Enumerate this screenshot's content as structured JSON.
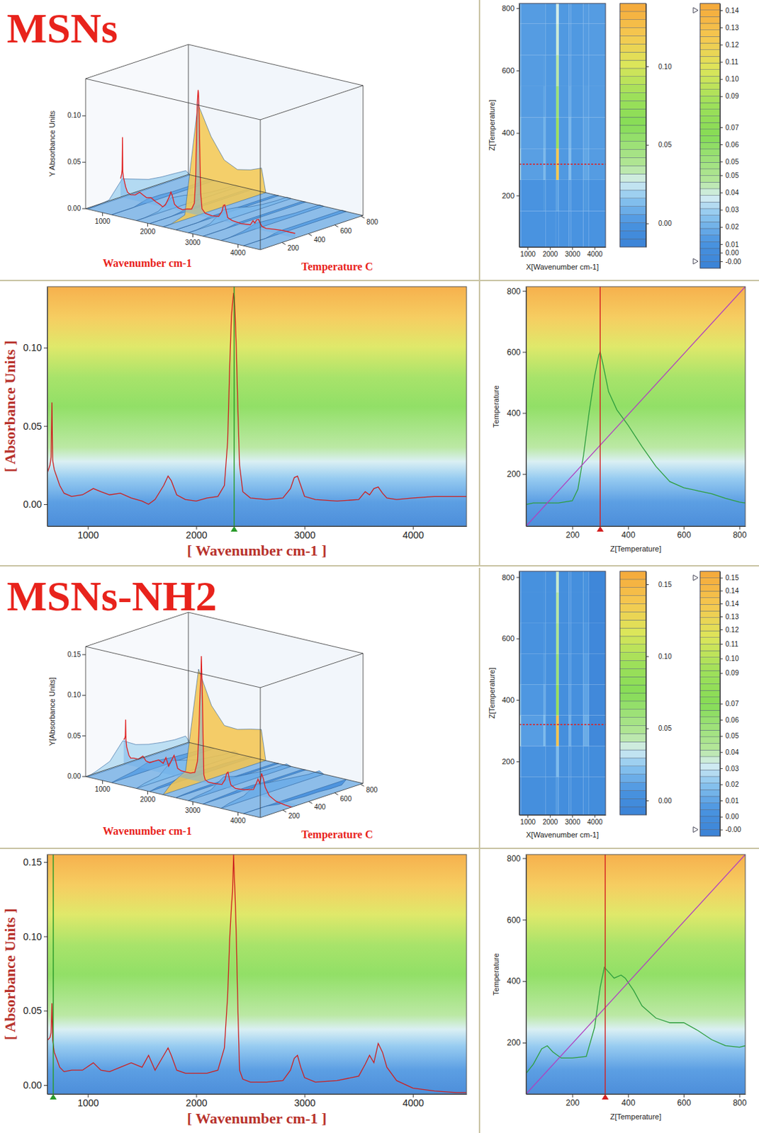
{
  "chart_data": [
    {
      "type": "surface3d",
      "title": "MSNs",
      "x_label": "Wavenumber cm-1",
      "y_label": "Temperature C",
      "z_label": "Y Absorbance Units",
      "xlim": [
        625,
        4495
      ],
      "xticks": [
        1000,
        2000,
        3000,
        4000
      ],
      "ylim": [
        35,
        815
      ],
      "yticks": [
        200,
        400,
        600,
        800
      ],
      "zlim": [
        0,
        0.14
      ],
      "zticks": [
        {
          "value": 0,
          "label": "0.00"
        },
        {
          "value": 0.05,
          "label": "0.05"
        },
        {
          "value": 0.1,
          "label": "0.10"
        }
      ]
    },
    {
      "type": "heatmap",
      "x_label": "X[Wavenumber cm-1]",
      "y_label": "Z[Temperature]",
      "xlim": [
        625,
        4495
      ],
      "xticks": [
        1000,
        2000,
        3000,
        4000
      ],
      "ylim": [
        35,
        815
      ],
      "yticks": [
        200,
        400,
        600,
        800
      ],
      "x_bins": [
        625,
        700,
        1700,
        1800,
        2280,
        2400,
        2850,
        2950,
        3500,
        3750,
        4495
      ],
      "y_bins": [
        35,
        150,
        250,
        350,
        450,
        550,
        650,
        750,
        815
      ],
      "cells": [
        [
          0,
          0,
          0,
          0,
          0,
          0,
          0,
          0,
          0,
          0
        ],
        [
          0.002,
          0,
          0.002,
          0,
          0.005,
          0,
          0.002,
          0,
          0.002,
          0
        ],
        [
          0.02,
          0.004,
          0.012,
          0.002,
          0.12,
          0.002,
          0.012,
          0.002,
          0.006,
          0.003
        ],
        [
          0.015,
          0.004,
          0.01,
          0.002,
          0.08,
          0.002,
          0.01,
          0.002,
          0.005,
          0.003
        ],
        [
          0.01,
          0.003,
          0.006,
          0.002,
          0.05,
          0.002,
          0.006,
          0.002,
          0.004,
          0.003
        ],
        [
          0.008,
          0.003,
          0.004,
          0.002,
          0.035,
          0.002,
          0.004,
          0.002,
          0.003,
          0.003
        ],
        [
          0.007,
          0.003,
          0.003,
          0.002,
          0.03,
          0.002,
          0.003,
          0.002,
          0.003,
          0.003
        ],
        [
          0.006,
          0.003,
          0.003,
          0.002,
          0.028,
          0.002,
          0.003,
          0.002,
          0.003,
          0.003
        ]
      ],
      "cursor_y": 300,
      "colorbar": {
        "range": [
          -0.015,
          0.14
        ],
        "ticks": [
          {
            "value": 0,
            "label": "0.00"
          },
          {
            "value": 0.05,
            "label": "0.05"
          },
          {
            "value": 0.1,
            "label": "0.10"
          }
        ]
      },
      "colorbar2": {
        "range": [
          -0.008,
          0.146
        ],
        "ticks": [
          {
            "value": 0.142,
            "label": "0.14"
          },
          {
            "value": 0.132,
            "label": "0.13"
          },
          {
            "value": 0.122,
            "label": "0.12"
          },
          {
            "value": 0.112,
            "label": "0.11"
          },
          {
            "value": 0.102,
            "label": "0.10"
          },
          {
            "value": 0.092,
            "label": "0.09"
          },
          {
            "value": 0.074,
            "label": "0.07"
          },
          {
            "value": 0.064,
            "label": "0.06"
          },
          {
            "value": 0.054,
            "label": "0.05"
          },
          {
            "value": 0.046,
            "label": "0.05"
          },
          {
            "value": 0.036,
            "label": "0.04"
          },
          {
            "value": 0.026,
            "label": "0.03"
          },
          {
            "value": 0.016,
            "label": "0.02"
          },
          {
            "value": 0.006,
            "label": "0.01"
          },
          {
            "value": 0.001,
            "label": "0.00"
          },
          {
            "value": -0.004,
            "label": "-0.00"
          }
        ]
      }
    },
    {
      "type": "line",
      "x_label": "[ Wavenumber cm-1 ]",
      "y_label": "[ Absorbance Units ]",
      "xlim": [
        625,
        4495
      ],
      "xticks": [
        1000,
        2000,
        3000,
        4000
      ],
      "ylim": [
        -0.014,
        0.139
      ],
      "yticks": [
        {
          "value": 0,
          "label": "0.00"
        },
        {
          "value": 0.05,
          "label": "0.05"
        },
        {
          "value": 0.1,
          "label": "0.10"
        }
      ],
      "x": [
        625,
        650,
        660,
        668,
        675,
        690,
        710,
        740,
        780,
        850,
        950,
        1050,
        1120,
        1200,
        1300,
        1400,
        1500,
        1560,
        1620,
        1700,
        1740,
        1770,
        1820,
        1900,
        2000,
        2100,
        2200,
        2260,
        2290,
        2310,
        2325,
        2335,
        2345,
        2352,
        2360,
        2370,
        2385,
        2400,
        2430,
        2500,
        2650,
        2800,
        2870,
        2905,
        2935,
        2965,
        3000,
        3100,
        3300,
        3500,
        3560,
        3600,
        3640,
        3680,
        3720,
        3760,
        3850,
        4000,
        4200,
        4400,
        4495
      ],
      "series": [
        {
          "color": "#cc2020",
          "values": [
            0.02,
            0.025,
            0.03,
            0.065,
            0.028,
            0.022,
            0.018,
            0.012,
            0.007,
            0.005,
            0.006,
            0.01,
            0.008,
            0.006,
            0.007,
            0.004,
            0.002,
            0.0,
            0.003,
            0.012,
            0.018,
            0.015,
            0.006,
            0.003,
            0.002,
            0.004,
            0.005,
            0.012,
            0.04,
            0.09,
            0.12,
            0.128,
            0.135,
            0.132,
            0.12,
            0.1,
            0.06,
            0.025,
            0.008,
            0.004,
            0.003,
            0.004,
            0.01,
            0.017,
            0.018,
            0.012,
            0.005,
            0.003,
            0.002,
            0.003,
            0.008,
            0.006,
            0.01,
            0.011,
            0.007,
            0.004,
            0.003,
            0.004,
            0.005,
            0.005,
            0.005
          ]
        }
      ],
      "cursor_x": 2350
    },
    {
      "type": "line",
      "x_label": "Z[Temperature]",
      "y_label": "Temperature",
      "xlim": [
        34,
        821
      ],
      "xticks": [
        200,
        400,
        600,
        800
      ],
      "ylim": [
        29,
        814
      ],
      "yticks": [
        200,
        400,
        600,
        800
      ],
      "series": [
        {
          "color": "#2e9e3e",
          "x": [
            34,
            60,
            100,
            150,
            200,
            220,
            240,
            260,
            280,
            295,
            300,
            310,
            330,
            360,
            400,
            450,
            500,
            550,
            600,
            650,
            700,
            750,
            800,
            821
          ],
          "values": [
            100,
            105,
            105,
            105,
            112,
            150,
            260,
            400,
            520,
            590,
            600,
            560,
            470,
            410,
            360,
            290,
            225,
            175,
            155,
            145,
            135,
            120,
            108,
            105
          ]
        },
        {
          "color": "#b040c0",
          "x": [
            34,
            821
          ],
          "values": [
            29,
            814
          ]
        }
      ],
      "cursor_x": 300
    },
    {
      "type": "surface3d",
      "title": "MSNs-NH2",
      "x_label": "Wavenumber cm-1",
      "y_label": "Temperature C",
      "z_label": "Y[Absorbance Units]",
      "xlim": [
        625,
        4495
      ],
      "xticks": [
        1000,
        2000,
        3000,
        4000
      ],
      "ylim": [
        26,
        819
      ],
      "yticks": [
        200,
        400,
        600,
        800
      ],
      "zlim": [
        0,
        0.16
      ],
      "zticks": [
        {
          "value": 0,
          "label": "0.00"
        },
        {
          "value": 0.05,
          "label": "0.05"
        },
        {
          "value": 0.1,
          "label": "0.10"
        },
        {
          "value": 0.15,
          "label": "0.15"
        }
      ]
    },
    {
      "type": "heatmap",
      "x_label": "X[Wavenumber cm-1]",
      "y_label": "Z[Temperature]",
      "xlim": [
        625,
        4495
      ],
      "xticks": [
        1000,
        2000,
        3000,
        4000
      ],
      "ylim": [
        26,
        819
      ],
      "yticks": [
        200,
        400,
        600,
        800
      ],
      "x_bins": [
        625,
        700,
        1700,
        1800,
        2280,
        2400,
        2850,
        2950,
        3500,
        3750,
        4495
      ],
      "y_bins": [
        26,
        150,
        250,
        350,
        450,
        550,
        650,
        750,
        819
      ],
      "cells": [
        [
          0.003,
          0.002,
          0.003,
          0.002,
          0.01,
          0.001,
          0.002,
          0.001,
          0.003,
          0.0
        ],
        [
          0.01,
          0.005,
          0.006,
          0.003,
          0.02,
          0.002,
          0.004,
          0.002,
          0.006,
          0.0
        ],
        [
          0.03,
          0.01,
          0.02,
          0.006,
          0.14,
          0.002,
          0.015,
          0.003,
          0.015,
          -0.003
        ],
        [
          0.02,
          0.008,
          0.015,
          0.005,
          0.09,
          0.002,
          0.01,
          0.003,
          0.012,
          -0.003
        ],
        [
          0.015,
          0.006,
          0.01,
          0.004,
          0.06,
          0.002,
          0.008,
          0.002,
          0.01,
          -0.004
        ],
        [
          0.012,
          0.005,
          0.008,
          0.004,
          0.05,
          0.002,
          0.006,
          0.002,
          0.008,
          -0.004
        ],
        [
          0.01,
          0.004,
          0.006,
          0.003,
          0.045,
          0.002,
          0.005,
          0.002,
          0.006,
          -0.005
        ],
        [
          0.01,
          0.004,
          0.006,
          0.003,
          0.04,
          0.002,
          0.005,
          0.002,
          0.006,
          -0.005
        ]
      ],
      "cursor_y": 320,
      "colorbar": {
        "range": [
          -0.01,
          0.159
        ],
        "ticks": [
          {
            "value": 0,
            "label": "0.00"
          },
          {
            "value": 0.05,
            "label": "0.05"
          },
          {
            "value": 0.1,
            "label": "0.10"
          },
          {
            "value": 0.15,
            "label": "0.15"
          }
        ]
      },
      "colorbar2": {
        "range": [
          -0.008,
          0.156
        ],
        "ticks": [
          {
            "value": 0.152,
            "label": "0.15"
          },
          {
            "value": 0.144,
            "label": "0.14"
          },
          {
            "value": 0.136,
            "label": "0.14"
          },
          {
            "value": 0.128,
            "label": "0.13"
          },
          {
            "value": 0.12,
            "label": "0.12"
          },
          {
            "value": 0.111,
            "label": "0.11"
          },
          {
            "value": 0.102,
            "label": "0.10"
          },
          {
            "value": 0.093,
            "label": "0.09"
          },
          {
            "value": 0.074,
            "label": "0.07"
          },
          {
            "value": 0.064,
            "label": "0.06"
          },
          {
            "value": 0.054,
            "label": "0.05"
          },
          {
            "value": 0.044,
            "label": "0.04"
          },
          {
            "value": 0.034,
            "label": "0.03"
          },
          {
            "value": 0.024,
            "label": "0.02"
          },
          {
            "value": 0.014,
            "label": "0.01"
          },
          {
            "value": 0.004,
            "label": "0.00"
          },
          {
            "value": -0.004,
            "label": "-0.00"
          }
        ]
      }
    },
    {
      "type": "line",
      "x_label": "[ Wavenumber cm-1 ]",
      "y_label": "[ Absorbance Units ]",
      "xlim": [
        625,
        4495
      ],
      "xticks": [
        1000,
        2000,
        3000,
        4000
      ],
      "ylim": [
        -0.006,
        0.155
      ],
      "yticks": [
        {
          "value": 0,
          "label": "0.00"
        },
        {
          "value": 0.05,
          "label": "0.05"
        },
        {
          "value": 0.1,
          "label": "0.10"
        },
        {
          "value": 0.15,
          "label": "0.15"
        }
      ],
      "x": [
        625,
        650,
        660,
        668,
        675,
        690,
        710,
        740,
        780,
        850,
        950,
        1050,
        1120,
        1200,
        1300,
        1400,
        1500,
        1560,
        1620,
        1700,
        1740,
        1770,
        1820,
        1900,
        2000,
        2100,
        2200,
        2260,
        2290,
        2310,
        2325,
        2335,
        2345,
        2352,
        2360,
        2370,
        2385,
        2400,
        2430,
        2500,
        2650,
        2800,
        2870,
        2905,
        2935,
        2965,
        3000,
        3100,
        3300,
        3500,
        3560,
        3600,
        3640,
        3680,
        3720,
        3760,
        3850,
        4000,
        4200,
        4400,
        4495
      ],
      "series": [
        {
          "color": "#cc2020",
          "values": [
            0.03,
            0.032,
            0.035,
            0.055,
            0.03,
            0.022,
            0.018,
            0.012,
            0.009,
            0.01,
            0.01,
            0.015,
            0.01,
            0.009,
            0.012,
            0.015,
            0.012,
            0.02,
            0.01,
            0.02,
            0.025,
            0.02,
            0.01,
            0.008,
            0.008,
            0.008,
            0.01,
            0.025,
            0.06,
            0.1,
            0.12,
            0.13,
            0.155,
            0.14,
            0.125,
            0.1,
            0.05,
            0.01,
            0.004,
            0.002,
            0.002,
            0.003,
            0.01,
            0.018,
            0.02,
            0.012,
            0.005,
            0.002,
            0.003,
            0.006,
            0.014,
            0.02,
            0.015,
            0.028,
            0.022,
            0.012,
            0.003,
            -0.002,
            -0.004,
            -0.005,
            -0.005
          ]
        }
      ],
      "cursor_x": 680
    },
    {
      "type": "line",
      "x_label": "Z[Temperature]",
      "y_label": "Temperature",
      "xlim": [
        34,
        821
      ],
      "xticks": [
        200,
        400,
        600,
        800
      ],
      "ylim": [
        33,
        812
      ],
      "yticks": [
        200,
        400,
        600,
        800
      ],
      "series": [
        {
          "color": "#2e9e3e",
          "x": [
            34,
            60,
            90,
            110,
            130,
            160,
            200,
            250,
            280,
            300,
            315,
            330,
            350,
            375,
            390,
            420,
            450,
            500,
            550,
            600,
            650,
            700,
            750,
            800,
            821
          ],
          "values": [
            100,
            130,
            180,
            190,
            170,
            150,
            150,
            155,
            250,
            380,
            445,
            430,
            410,
            420,
            410,
            370,
            320,
            280,
            265,
            265,
            240,
            210,
            190,
            185,
            190
          ]
        },
        {
          "color": "#b040c0",
          "x": [
            34,
            821
          ],
          "values": [
            33,
            812
          ]
        }
      ],
      "cursor_x": 318
    }
  ]
}
